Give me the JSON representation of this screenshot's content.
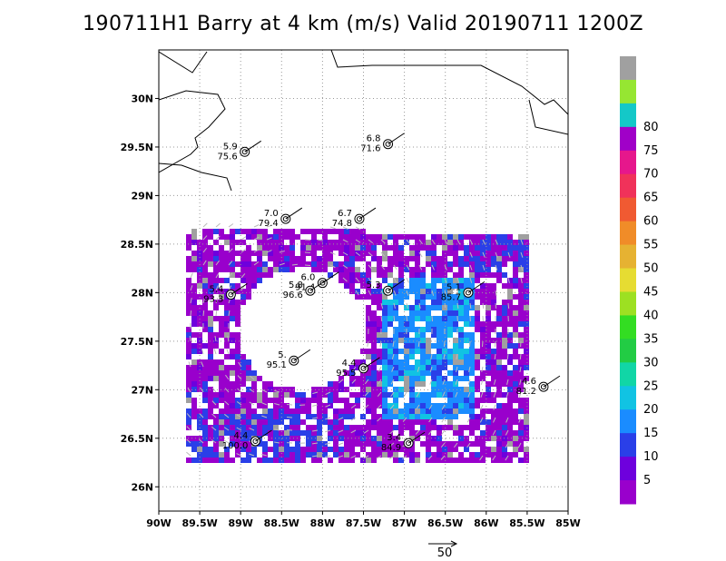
{
  "title": "190711H1 Barry at 4 km (m/s) Valid 20190711  1200Z",
  "map": {
    "lon_range": [
      -90,
      -85
    ],
    "lat_range": [
      25.75,
      30.5
    ],
    "lon_ticks": [
      "90W",
      "89.5W",
      "89W",
      "88.5W",
      "88W",
      "87.5W",
      "87W",
      "86.5W",
      "86W",
      "85.5W",
      "85W"
    ],
    "lat_ticks": [
      "26N",
      "26.5N",
      "27N",
      "27.5N",
      "28N",
      "28.5N",
      "29N",
      "29.5N",
      "30N"
    ],
    "grid": "dotted"
  },
  "colorbar": {
    "labels": [
      "5",
      "10",
      "15",
      "20",
      "25",
      "30",
      "35",
      "40",
      "45",
      "50",
      "55",
      "60",
      "65",
      "70",
      "75",
      "80"
    ],
    "colors": [
      "#9900cc",
      "#6e00dd",
      "#2a3fe8",
      "#1a8cff",
      "#11c3e3",
      "#11d6a6",
      "#22cc44",
      "#33dd22",
      "#9de022",
      "#e6dc32",
      "#e6b232",
      "#f08c28",
      "#f05a32",
      "#f0325a",
      "#e6178c",
      "#a000c8",
      "#14c8c8",
      "#96e632",
      "#a0a0a0"
    ]
  },
  "observations": [
    {
      "lon": -88.95,
      "lat": 29.45,
      "speed": "5.9",
      "value": "75.6"
    },
    {
      "lon": -87.2,
      "lat": 29.53,
      "speed": "6.8",
      "value": "71.6"
    },
    {
      "lon": -88.45,
      "lat": 28.76,
      "speed": "7.0",
      "value": "79.4"
    },
    {
      "lon": -87.55,
      "lat": 28.76,
      "speed": "6.7",
      "value": "74.8"
    },
    {
      "lon": -89.12,
      "lat": 27.98,
      "speed": "5.4",
      "value": "93.3"
    },
    {
      "lon": -88.0,
      "lat": 28.1,
      "speed": "6.0",
      "value": "91.4"
    },
    {
      "lon": -88.15,
      "lat": 28.02,
      "speed": "5.8",
      "value": "96.6"
    },
    {
      "lon": -87.2,
      "lat": 28.02,
      "speed": "5.3",
      "value": ""
    },
    {
      "lon": -86.22,
      "lat": 28.0,
      "speed": "5.1",
      "value": "85.7"
    },
    {
      "lon": -88.35,
      "lat": 27.3,
      "speed": "5.",
      "value": "95.1"
    },
    {
      "lon": -87.5,
      "lat": 27.22,
      "speed": "4.4",
      "value": "95.5"
    },
    {
      "lon": -85.3,
      "lat": 27.03,
      "speed": "4.6",
      "value": "81.2"
    },
    {
      "lon": -88.82,
      "lat": 26.47,
      "speed": "4.4",
      "value": "100.0"
    },
    {
      "lon": -86.95,
      "lat": 26.45,
      "speed": "3.4",
      "value": "84.9"
    }
  ],
  "scale_arrow_label": "50"
}
